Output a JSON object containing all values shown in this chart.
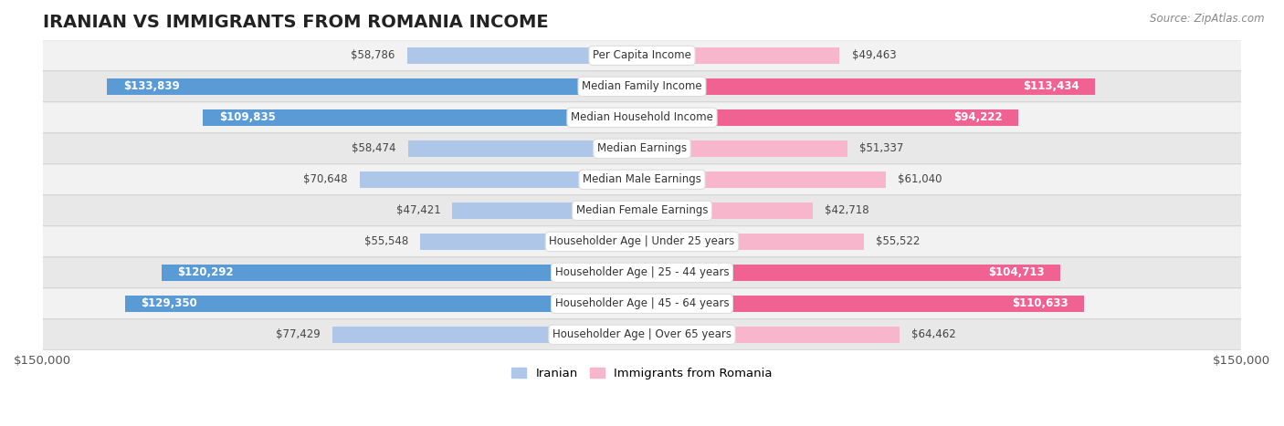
{
  "title": "IRANIAN VS IMMIGRANTS FROM ROMANIA INCOME",
  "source": "Source: ZipAtlas.com",
  "categories": [
    "Per Capita Income",
    "Median Family Income",
    "Median Household Income",
    "Median Earnings",
    "Median Male Earnings",
    "Median Female Earnings",
    "Householder Age | Under 25 years",
    "Householder Age | 25 - 44 years",
    "Householder Age | 45 - 64 years",
    "Householder Age | Over 65 years"
  ],
  "iranian_values": [
    58786,
    133839,
    109835,
    58474,
    70648,
    47421,
    55548,
    120292,
    129350,
    77429
  ],
  "romanian_values": [
    49463,
    113434,
    94222,
    51337,
    61040,
    42718,
    55522,
    104713,
    110633,
    64462
  ],
  "iranian_labels": [
    "$58,786",
    "$133,839",
    "$109,835",
    "$58,474",
    "$70,648",
    "$47,421",
    "$55,548",
    "$120,292",
    "$129,350",
    "$77,429"
  ],
  "romanian_labels": [
    "$49,463",
    "$113,434",
    "$94,222",
    "$51,337",
    "$61,040",
    "$42,718",
    "$55,522",
    "$104,713",
    "$110,633",
    "$64,462"
  ],
  "max_value": 150000,
  "iranian_color_light": "#aec6e8",
  "romanian_color_light": "#f7b6cb",
  "iranian_color_dark": "#5b9bd5",
  "romanian_color_dark": "#f06292",
  "row_bg_light": "#f2f2f2",
  "row_bg_dark": "#e8e8e8",
  "bar_height": 0.52,
  "legend_iranian": "Iranian",
  "legend_romanian": "Immigrants from Romania",
  "max_val": 150000,
  "inside_label_threshold_iran": 90000,
  "inside_label_threshold_rom": 80000,
  "xlabel_left": "$150,000",
  "xlabel_right": "$150,000",
  "title_fontsize": 14,
  "label_fontsize": 8.5,
  "cat_fontsize": 8.5,
  "source_fontsize": 8.5
}
